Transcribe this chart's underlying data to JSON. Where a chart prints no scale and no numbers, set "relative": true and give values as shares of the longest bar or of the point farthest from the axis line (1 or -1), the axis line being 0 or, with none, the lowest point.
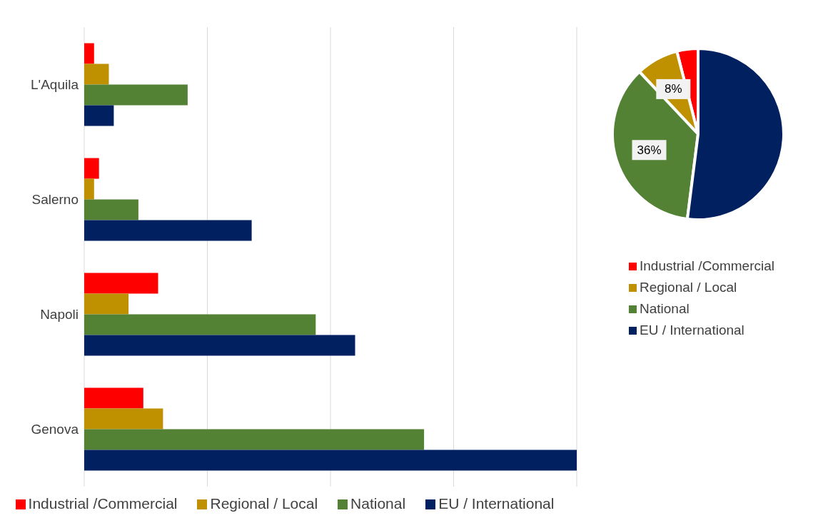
{
  "chart_data": [
    {
      "type": "bar",
      "orientation": "horizontal",
      "relative": true,
      "grid": "x",
      "legend": "bottom",
      "categories": [
        "L'Aquila",
        "Salerno",
        "Napoli",
        "Genova"
      ],
      "series": [
        {
          "name": "Industrial /Commercial",
          "color": "#ff0000",
          "values": [
            0.02,
            0.03,
            0.15,
            0.12
          ]
        },
        {
          "name": "Regional / Local",
          "color": "#bf9000",
          "values": [
            0.05,
            0.02,
            0.09,
            0.16
          ]
        },
        {
          "name": "National",
          "color": "#548235",
          "values": [
            0.21,
            0.11,
            0.47,
            0.69
          ]
        },
        {
          "name": "EU / International",
          "color": "#002060",
          "values": [
            0.06,
            0.34,
            0.55,
            1
          ]
        }
      ]
    },
    {
      "type": "pie",
      "legend": "bottom",
      "categories": [
        "Industrial /Commercial",
        "Regional / Local",
        "National",
        "EU / International"
      ],
      "values": [
        4,
        8,
        36,
        52
      ],
      "colors": [
        "#ff0000",
        "#bf9000",
        "#548235",
        "#002060"
      ],
      "value_labels": [
        null,
        "8%",
        "36%",
        null
      ]
    }
  ]
}
